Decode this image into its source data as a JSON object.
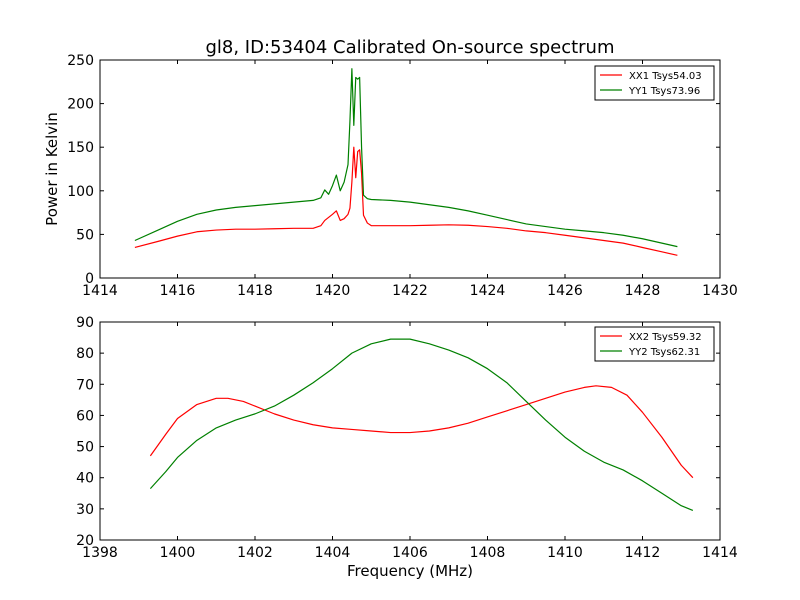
{
  "figure_title": "gl8, ID:53404 Calibrated On-source spectrum",
  "chart_data": [
    {
      "type": "line",
      "title": "gl8, ID:53404 Calibrated On-source spectrum",
      "xlabel": "",
      "ylabel": "Power in Kelvin",
      "xlim": [
        1414,
        1430
      ],
      "ylim": [
        0,
        250
      ],
      "xticks": [
        1414,
        1416,
        1418,
        1420,
        1422,
        1424,
        1426,
        1428,
        1430
      ],
      "yticks": [
        0,
        50,
        100,
        150,
        200,
        250
      ],
      "grid": false,
      "legend_position": "top-right",
      "series": [
        {
          "name": "XX1 Tsys54.03",
          "color": "#ff0000",
          "x": [
            1414.9,
            1415.5,
            1416.0,
            1416.5,
            1417.0,
            1417.5,
            1418.0,
            1418.5,
            1419.0,
            1419.5,
            1419.7,
            1419.8,
            1420.0,
            1420.1,
            1420.2,
            1420.3,
            1420.4,
            1420.45,
            1420.5,
            1420.55,
            1420.6,
            1420.65,
            1420.7,
            1420.75,
            1420.8,
            1420.9,
            1421.0,
            1421.5,
            1422.0,
            1422.5,
            1423.0,
            1423.5,
            1424.0,
            1424.5,
            1425.0,
            1425.5,
            1426.0,
            1426.5,
            1427.0,
            1427.5,
            1428.0,
            1428.5,
            1428.9
          ],
          "y": [
            35,
            42,
            48,
            53,
            55,
            56,
            56,
            56.5,
            57,
            57,
            60,
            66,
            73,
            77,
            66,
            68,
            73,
            80,
            110,
            150,
            115,
            145,
            147,
            120,
            72,
            63,
            60,
            60,
            60,
            60.5,
            61,
            60.5,
            59,
            57,
            54,
            52,
            49,
            46,
            43,
            40,
            35,
            30,
            26
          ]
        },
        {
          "name": "YY1 Tsys73.96",
          "color": "#008000",
          "x": [
            1414.9,
            1415.5,
            1416.0,
            1416.5,
            1417.0,
            1417.5,
            1418.0,
            1418.5,
            1419.0,
            1419.5,
            1419.7,
            1419.8,
            1419.9,
            1420.0,
            1420.1,
            1420.2,
            1420.3,
            1420.4,
            1420.45,
            1420.5,
            1420.55,
            1420.6,
            1420.65,
            1420.7,
            1420.75,
            1420.8,
            1420.9,
            1421.0,
            1421.5,
            1422.0,
            1422.5,
            1423.0,
            1423.5,
            1424.0,
            1424.5,
            1425.0,
            1425.5,
            1426.0,
            1426.5,
            1427.0,
            1427.5,
            1428.0,
            1428.5,
            1428.9
          ],
          "y": [
            43,
            55,
            65,
            73,
            78,
            81,
            83,
            85,
            87,
            89,
            92,
            101,
            96,
            106,
            118,
            100,
            110,
            130,
            180,
            240,
            175,
            230,
            228,
            230,
            150,
            95,
            91,
            90,
            89,
            87,
            84,
            81,
            77,
            72,
            67,
            62,
            59,
            56,
            54,
            52,
            49,
            45,
            40,
            36
          ]
        }
      ]
    },
    {
      "type": "line",
      "title": "",
      "xlabel": "Frequency (MHz)",
      "ylabel": "",
      "xlim": [
        1398,
        1414
      ],
      "ylim": [
        20,
        90
      ],
      "xticks": [
        1398,
        1400,
        1402,
        1404,
        1406,
        1408,
        1410,
        1412,
        1414
      ],
      "yticks": [
        20,
        30,
        40,
        50,
        60,
        70,
        80,
        90
      ],
      "grid": false,
      "legend_position": "top-right",
      "series": [
        {
          "name": "XX2 Tsys59.32",
          "color": "#ff0000",
          "x": [
            1399.3,
            1399.7,
            1400.0,
            1400.5,
            1401.0,
            1401.3,
            1401.7,
            1402.0,
            1402.5,
            1403.0,
            1403.5,
            1404.0,
            1404.5,
            1405.0,
            1405.5,
            1406.0,
            1406.5,
            1407.0,
            1407.5,
            1408.0,
            1408.5,
            1409.0,
            1409.5,
            1410.0,
            1410.5,
            1410.8,
            1411.2,
            1411.6,
            1412.0,
            1412.5,
            1413.0,
            1413.3
          ],
          "y": [
            47,
            54,
            59,
            63.5,
            65.5,
            65.5,
            64.5,
            63,
            60.5,
            58.5,
            57,
            56,
            55.5,
            55,
            54.5,
            54.5,
            55,
            56,
            57.5,
            59.5,
            61.5,
            63.5,
            65.5,
            67.5,
            69,
            69.5,
            69,
            66.5,
            61,
            53,
            44,
            40
          ]
        },
        {
          "name": "YY2 Tsys62.31",
          "color": "#008000",
          "x": [
            1399.3,
            1399.7,
            1400.0,
            1400.5,
            1401.0,
            1401.5,
            1402.0,
            1402.5,
            1403.0,
            1403.5,
            1404.0,
            1404.5,
            1405.0,
            1405.5,
            1406.0,
            1406.5,
            1407.0,
            1407.5,
            1408.0,
            1408.5,
            1409.0,
            1409.5,
            1410.0,
            1410.5,
            1411.0,
            1411.5,
            1412.0,
            1412.5,
            1413.0,
            1413.3
          ],
          "y": [
            36.5,
            42,
            46.5,
            52,
            56,
            58.5,
            60.5,
            63,
            66.5,
            70.5,
            75,
            80,
            83,
            84.5,
            84.5,
            83,
            81,
            78.5,
            75,
            70.5,
            64.5,
            58.5,
            53,
            48.5,
            45,
            42.5,
            39,
            35,
            31,
            29.5
          ]
        }
      ]
    }
  ]
}
